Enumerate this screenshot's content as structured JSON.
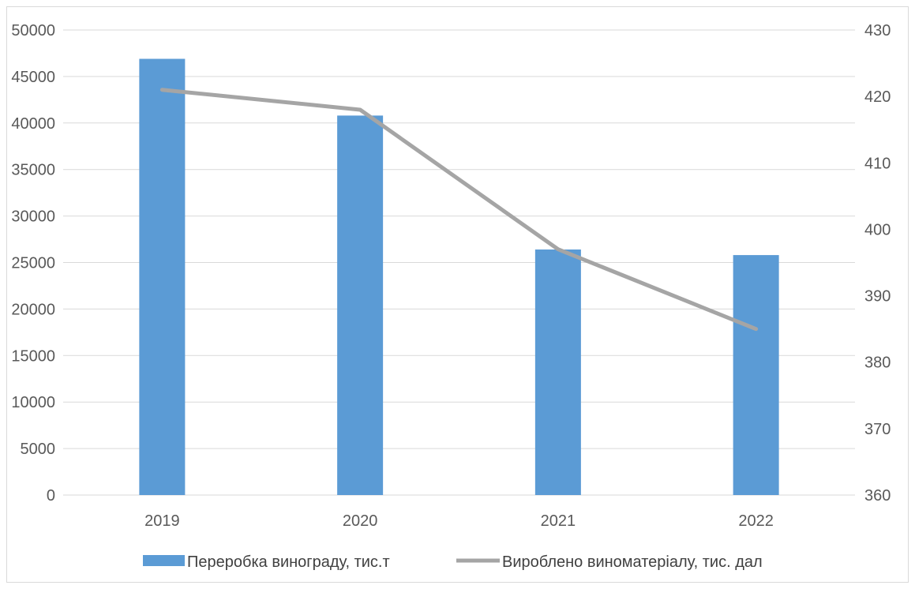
{
  "chart_data": {
    "type": "bar",
    "categories": [
      "2019",
      "2020",
      "2021",
      "2022"
    ],
    "series": [
      {
        "name": "Переробка винограду, тис.т",
        "type": "bar",
        "axis": "left",
        "values": [
          46900,
          40800,
          26400,
          25800
        ],
        "color": "#5b9bd5"
      },
      {
        "name": "Вироблено виноматеріалу, тис. дал",
        "type": "line",
        "axis": "right",
        "values": [
          421,
          418,
          397,
          385
        ],
        "color": "#a5a5a5"
      }
    ],
    "ylim": [
      0,
      50000
    ],
    "y_ticks": [
      "0",
      "5000",
      "10000",
      "15000",
      "20000",
      "25000",
      "30000",
      "35000",
      "40000",
      "45000",
      "50000"
    ],
    "y2lim": [
      360,
      430
    ],
    "y2_ticks": [
      "360",
      "370",
      "380",
      "390",
      "400",
      "410",
      "420",
      "430"
    ],
    "grid": true,
    "legend_position": "bottom",
    "gridline_color": "#d9d9d9"
  }
}
